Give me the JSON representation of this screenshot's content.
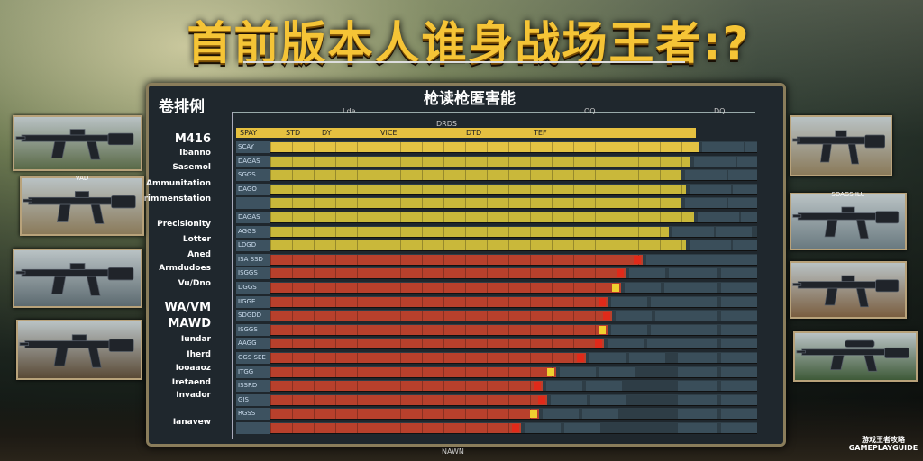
{
  "title": "首前版本人谁身战场王者:?",
  "panel": {
    "left_title": "卷排俐",
    "right_title": "枪读枪匿害能",
    "top_labels": [
      "Lde",
      "OQ",
      "DQ"
    ],
    "sub_label": "DRDS",
    "footer": "NAWN"
  },
  "header_cells": [
    "SPAY",
    "STD",
    "DY",
    "VICE",
    "DTD",
    "TEF"
  ],
  "row_labels": [
    "M416",
    "Ibanno",
    "Sasemol",
    "Ammunitation",
    "Primmenstation",
    "Precisionity",
    "Lotter",
    "Aned",
    "Armdudoes",
    "Vu/Dno",
    "WA/VM",
    "MAWD",
    "Iundar",
    "Iherd",
    "Iooaaoz",
    "Iretaend",
    "Invador",
    "Ianavew"
  ],
  "rows": [
    {
      "code": "SCAY",
      "level": 99,
      "color": "yellow"
    },
    {
      "code": "DAGAS",
      "level": 97,
      "color": "yellow"
    },
    {
      "code": "SGGS",
      "level": 95,
      "color": "yellow"
    },
    {
      "code": "DAGO",
      "level": 96,
      "color": "yellow"
    },
    {
      "code": "",
      "level": 95,
      "color": "yellow"
    },
    {
      "code": "DAGAS",
      "level": 98,
      "color": "yellow"
    },
    {
      "code": "AGGS",
      "level": 92,
      "color": "yellow"
    },
    {
      "code": "LDGD",
      "level": 96,
      "color": "yellow"
    },
    {
      "code": "ISA SSD",
      "level": 86,
      "color": "red"
    },
    {
      "code": "ISGGS",
      "level": 82,
      "color": "red"
    },
    {
      "code": "DGGS",
      "level": 81,
      "color": "red"
    },
    {
      "code": "IIGGE",
      "level": 78,
      "color": "red"
    },
    {
      "code": "SDGDD",
      "level": 79,
      "color": "red"
    },
    {
      "code": "ISGGS",
      "level": 78,
      "color": "red"
    },
    {
      "code": "AAGG",
      "level": 77,
      "color": "red"
    },
    {
      "code": "GGS SEE",
      "level": 73,
      "color": "red"
    },
    {
      "code": "ITGG",
      "level": 66,
      "color": "red"
    },
    {
      "code": "ISSRD",
      "level": 63,
      "color": "red"
    },
    {
      "code": "GIS",
      "level": 64,
      "color": "red"
    },
    {
      "code": "RGSS",
      "level": 62,
      "color": "red"
    },
    {
      "code": "",
      "level": 58,
      "color": "red"
    }
  ],
  "colors": {
    "yellow": "#c9b83a",
    "yellow_top": "#e3c343",
    "red": "#b8402c",
    "accent_red": "#e02a1a",
    "accent_yellow": "#f0d030",
    "title": "#f5c436"
  },
  "cards_left": [
    {
      "icon": "rifle-icon"
    },
    {
      "icon": "rifle-icon",
      "caption": "VAD"
    },
    {
      "icon": "rifle-icon"
    },
    {
      "icon": "rifle-icon"
    }
  ],
  "cards_right": [
    {
      "icon": "rifle-icon"
    },
    {
      "icon": "rifle-icon",
      "caption": "SDAGS ILU"
    },
    {
      "icon": "rifle-icon"
    },
    {
      "icon": "sniper-rifle-icon"
    }
  ],
  "watermark": "游戏王者攻略 GAMEPLAYGUIDE"
}
